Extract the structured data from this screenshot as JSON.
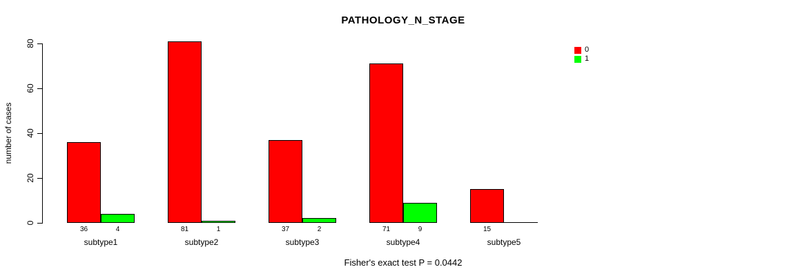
{
  "title": "PATHOLOGY_N_STAGE",
  "footer": "Fisher's exact test P = 0.0442",
  "chart_data": {
    "type": "bar",
    "title": "PATHOLOGY_N_STAGE",
    "categories": [
      "subtype1",
      "subtype2",
      "subtype3",
      "subtype4",
      "subtype5"
    ],
    "series": [
      {
        "name": "0",
        "color": "#FF0000",
        "values": [
          36,
          81,
          37,
          71,
          15
        ]
      },
      {
        "name": "1",
        "color": "#00FF00",
        "values": [
          4,
          1,
          2,
          9,
          0
        ]
      }
    ],
    "xlabel": "",
    "ylabel": "number of cases",
    "yticks": [
      0,
      20,
      40,
      60,
      80
    ],
    "ylim": [
      0,
      81
    ],
    "grid": false,
    "bar_value_labels": true,
    "legend_position": "top-right",
    "annotation": "Fisher's exact test P = 0.0442"
  },
  "legend": {
    "entries": [
      {
        "label": "0",
        "color": "#FF0000"
      },
      {
        "label": "1",
        "color": "#00FF00"
      }
    ]
  },
  "colors": {
    "background": "#FFFFFF",
    "axis": "#000000",
    "text": "#000000"
  }
}
